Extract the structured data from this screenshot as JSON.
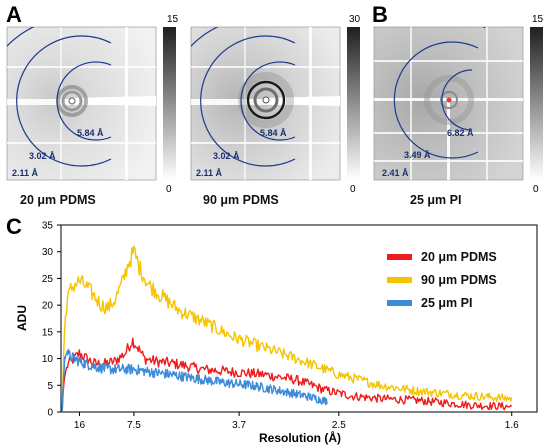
{
  "panels": [
    {
      "letter": "A",
      "caption": "20 μm PDMS",
      "rings": [
        "5.84 Å",
        "3.02 Å",
        "2.11 Å"
      ],
      "colorbar": {
        "max": "15",
        "min": "0"
      },
      "background": "light",
      "dark_ring": false
    },
    {
      "letter": "",
      "caption": "90 μm PDMS",
      "rings": [
        "5.84 Å",
        "3.02 Å",
        "2.11 Å"
      ],
      "colorbar": {
        "max": "30",
        "min": "0"
      },
      "background": "medium",
      "dark_ring": true
    },
    {
      "letter": "B",
      "caption": "25 μm PI",
      "rings": [
        "6.82 Å",
        "3.49 Å",
        "2.41 Å"
      ],
      "colorbar": {
        "max": "15",
        "min": "0"
      },
      "background": "dark",
      "dark_ring": false
    }
  ],
  "chart_panel_letter": "C",
  "chart_data": {
    "type": "line",
    "xlabel": "Resolution (Å)",
    "ylabel": "ADU",
    "x_tick_labels": [
      "16",
      "7.5",
      "3.7",
      "2.5",
      "1.6"
    ],
    "x_ticks_resolution": [
      16,
      7.5,
      3.7,
      2.5,
      1.6
    ],
    "ylim": [
      0,
      35
    ],
    "y_ticks": [
      0,
      5,
      10,
      15,
      20,
      25,
      30,
      35
    ],
    "legend_position": "top-right",
    "series": [
      {
        "name": "20 μm PDMS",
        "color": "#ee1c1c",
        "points": [
          [
            25,
            0
          ],
          [
            24.2,
            4
          ],
          [
            23,
            7
          ],
          [
            21,
            9
          ],
          [
            18,
            10
          ],
          [
            16,
            11
          ],
          [
            14,
            10
          ],
          [
            12,
            9
          ],
          [
            10.5,
            9
          ],
          [
            9.2,
            9.5
          ],
          [
            8.2,
            11
          ],
          [
            7.6,
            13.5
          ],
          [
            7.2,
            12
          ],
          [
            6.8,
            10
          ],
          [
            6.2,
            9.5
          ],
          [
            5.3,
            9
          ],
          [
            4.5,
            8
          ],
          [
            3.8,
            7.5
          ],
          [
            3.3,
            7
          ],
          [
            2.9,
            6
          ],
          [
            2.6,
            4
          ],
          [
            2.4,
            3
          ],
          [
            2.2,
            2.5
          ],
          [
            2.0,
            2.2
          ],
          [
            1.85,
            1.7
          ],
          [
            1.75,
            1.3
          ],
          [
            1.6,
            1.0
          ]
        ]
      },
      {
        "name": "90 μm PDMS",
        "color": "#f5c400",
        "points": [
          [
            25,
            0
          ],
          [
            24.2,
            8
          ],
          [
            23,
            17
          ],
          [
            21.5,
            21
          ],
          [
            19.5,
            23
          ],
          [
            17.5,
            24
          ],
          [
            16,
            24.5
          ],
          [
            14,
            23.5
          ],
          [
            12.5,
            22
          ],
          [
            11,
            20
          ],
          [
            10,
            19.5
          ],
          [
            9.2,
            21
          ],
          [
            8.5,
            24
          ],
          [
            7.9,
            28
          ],
          [
            7.5,
            30
          ],
          [
            7.1,
            27
          ],
          [
            6.6,
            24
          ],
          [
            6,
            22
          ],
          [
            5.2,
            19
          ],
          [
            4.5,
            17
          ],
          [
            3.8,
            14
          ],
          [
            3.3,
            12
          ],
          [
            2.9,
            10
          ],
          [
            2.5,
            7
          ],
          [
            2.2,
            5
          ],
          [
            2.0,
            4
          ],
          [
            1.8,
            3.2
          ],
          [
            1.6,
            2.5
          ]
        ]
      },
      {
        "name": "25 μm PI",
        "color": "#3f8bd8",
        "points": [
          [
            25,
            0
          ],
          [
            24.2,
            5
          ],
          [
            23,
            10
          ],
          [
            22,
            12
          ],
          [
            20.5,
            10.5
          ],
          [
            18,
            10
          ],
          [
            16,
            9.5
          ],
          [
            14,
            9
          ],
          [
            12,
            8.5
          ],
          [
            10,
            8
          ],
          [
            8.5,
            8
          ],
          [
            7.5,
            8
          ],
          [
            6.5,
            7.5
          ],
          [
            5.5,
            7
          ],
          [
            4.6,
            6.2
          ],
          [
            4,
            5.5
          ],
          [
            3.5,
            5
          ],
          [
            3.1,
            4
          ],
          [
            2.8,
            3
          ],
          [
            2.6,
            2
          ]
        ]
      }
    ]
  }
}
